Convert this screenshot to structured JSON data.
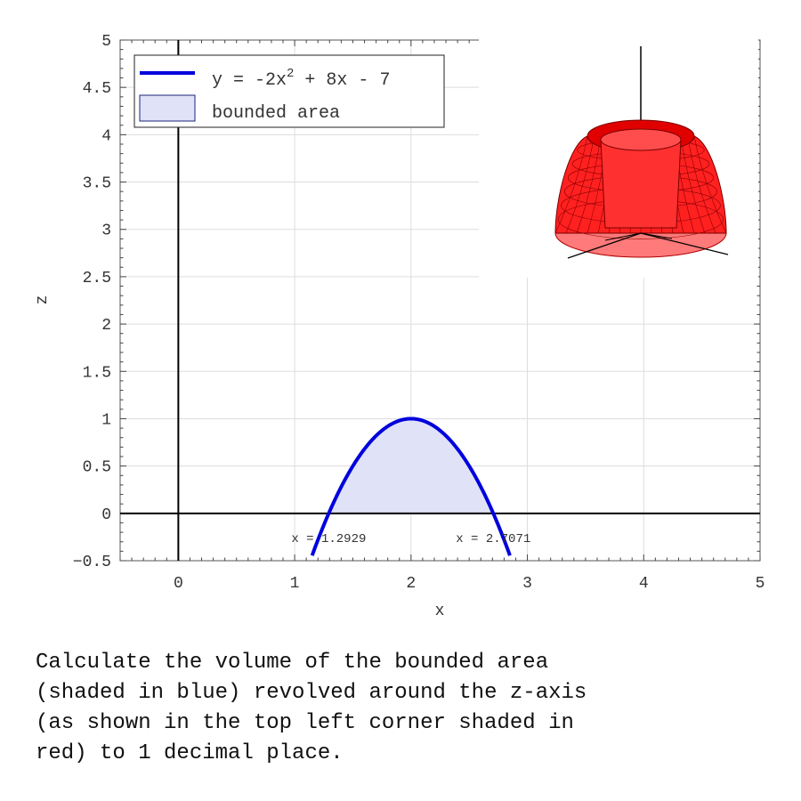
{
  "chart_data": {
    "type": "line",
    "xlabel": "x",
    "ylabel": "z",
    "xlim": [
      -0.5,
      5
    ],
    "ylim": [
      -0.5,
      5
    ],
    "x_ticks": [
      0,
      1,
      2,
      3,
      4,
      5
    ],
    "y_ticks": [
      -0.5,
      0,
      0.5,
      1,
      1.5,
      2,
      2.5,
      3,
      3.5,
      4,
      4.5,
      5
    ],
    "x_tick_labels": [
      "0",
      "1",
      "2",
      "3",
      "4",
      "5"
    ],
    "y_tick_labels": [
      "−0.5",
      "0",
      "0.5",
      "1",
      "1.5",
      "2",
      "2.5",
      "3",
      "3.5",
      "4",
      "4.5",
      "5"
    ],
    "grid": true,
    "legend_position": "top-left",
    "series": [
      {
        "name": "y = -2x² + 8x - 7",
        "name_parts": {
          "before": "y = -2x",
          "sup": "2",
          "after": " + 8x - 7"
        },
        "coefficients": {
          "a": -2,
          "b": 8,
          "c": -7
        },
        "x_range": [
          1.15,
          2.85
        ],
        "color": "#0000dd"
      }
    ],
    "shaded_region": {
      "name": "bounded area",
      "x_from": 1.2929,
      "x_to": 2.7071,
      "color": "#e0e2f8",
      "edge_color": "#1a237e"
    },
    "annotations": [
      {
        "text": "x = 1.2929",
        "x": 1.2929
      },
      {
        "text": "x = 2.7071",
        "x": 2.7071
      }
    ],
    "inset": {
      "description_color": "#ff2020",
      "shape": "solid of revolution"
    }
  },
  "question": {
    "lines": [
      "Calculate the volume of the bounded area",
      "(shaded in blue) revolved around the z-axis",
      "(as shown in the top left corner shaded in",
      "red) to 1 decimal place."
    ]
  }
}
